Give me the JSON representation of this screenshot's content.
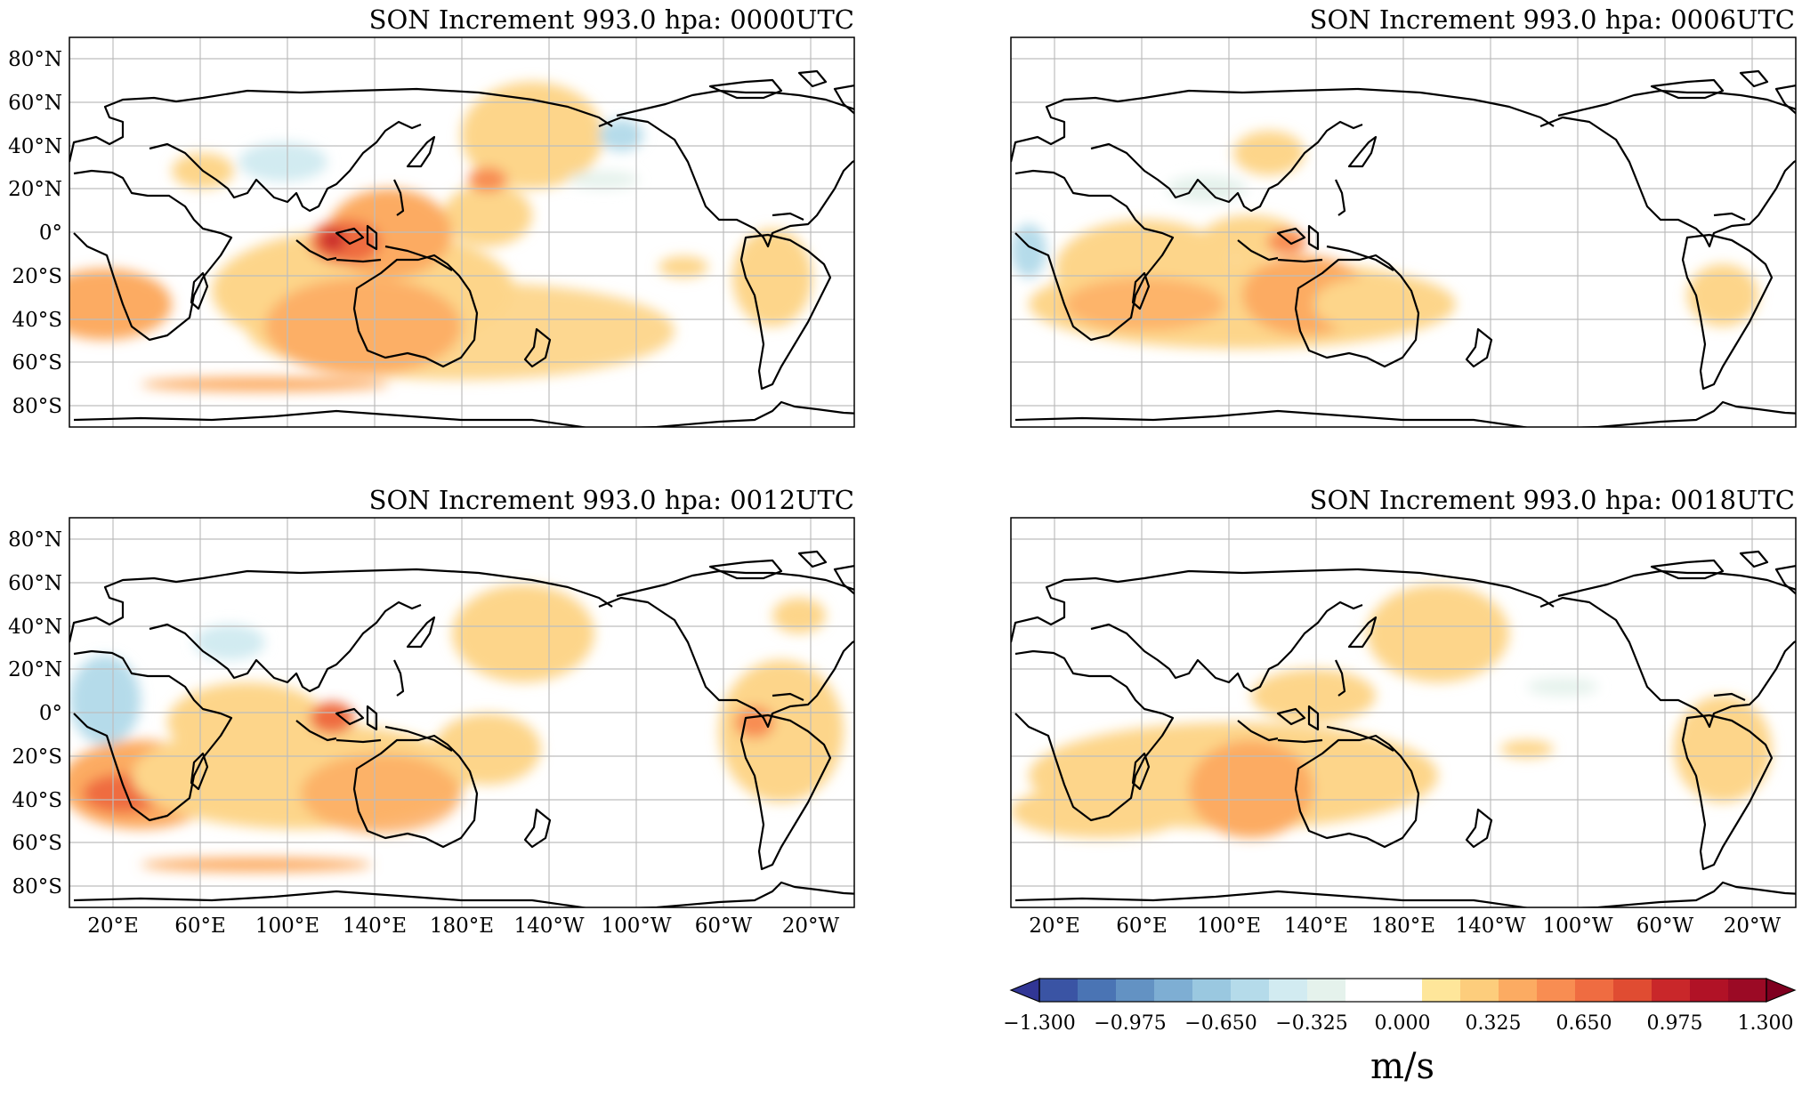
{
  "figure": {
    "panels": [
      {
        "title": "SON Increment 993.0 hpa: 0000UTC"
      },
      {
        "title": "SON Increment 993.0 hpa: 0006UTC"
      },
      {
        "title": "SON Increment 993.0 hpa: 0012UTC"
      },
      {
        "title": "SON Increment 993.0 hpa: 0018UTC"
      }
    ],
    "lat_ticks": [
      "80°N",
      "60°N",
      "40°N",
      "20°N",
      "0°",
      "20°S",
      "40°S",
      "60°S",
      "80°S"
    ],
    "lon_ticks": [
      "20°E",
      "60°E",
      "100°E",
      "140°E",
      "180°E",
      "140°W",
      "100°W",
      "60°W",
      "20°W"
    ],
    "colorbar": {
      "tick_labels": [
        "−1.300",
        "−0.975",
        "−0.650",
        "−0.325",
        "0.000",
        "0.325",
        "0.650",
        "0.975",
        "1.300"
      ],
      "units": "m/s",
      "colors": [
        "#313695",
        "#3a54a4",
        "#4a74b4",
        "#6392c3",
        "#7eaed3",
        "#9ac8e0",
        "#b5dbea",
        "#d2ebf1",
        "#e5f2ec",
        "#ffffff",
        "#ffffff",
        "#fee69a",
        "#fdcd7c",
        "#fcab62",
        "#f88d52",
        "#ef6c41",
        "#e04c32",
        "#c9272a",
        "#b11226",
        "#9b0a25",
        "#7f0020"
      ]
    }
  }
}
